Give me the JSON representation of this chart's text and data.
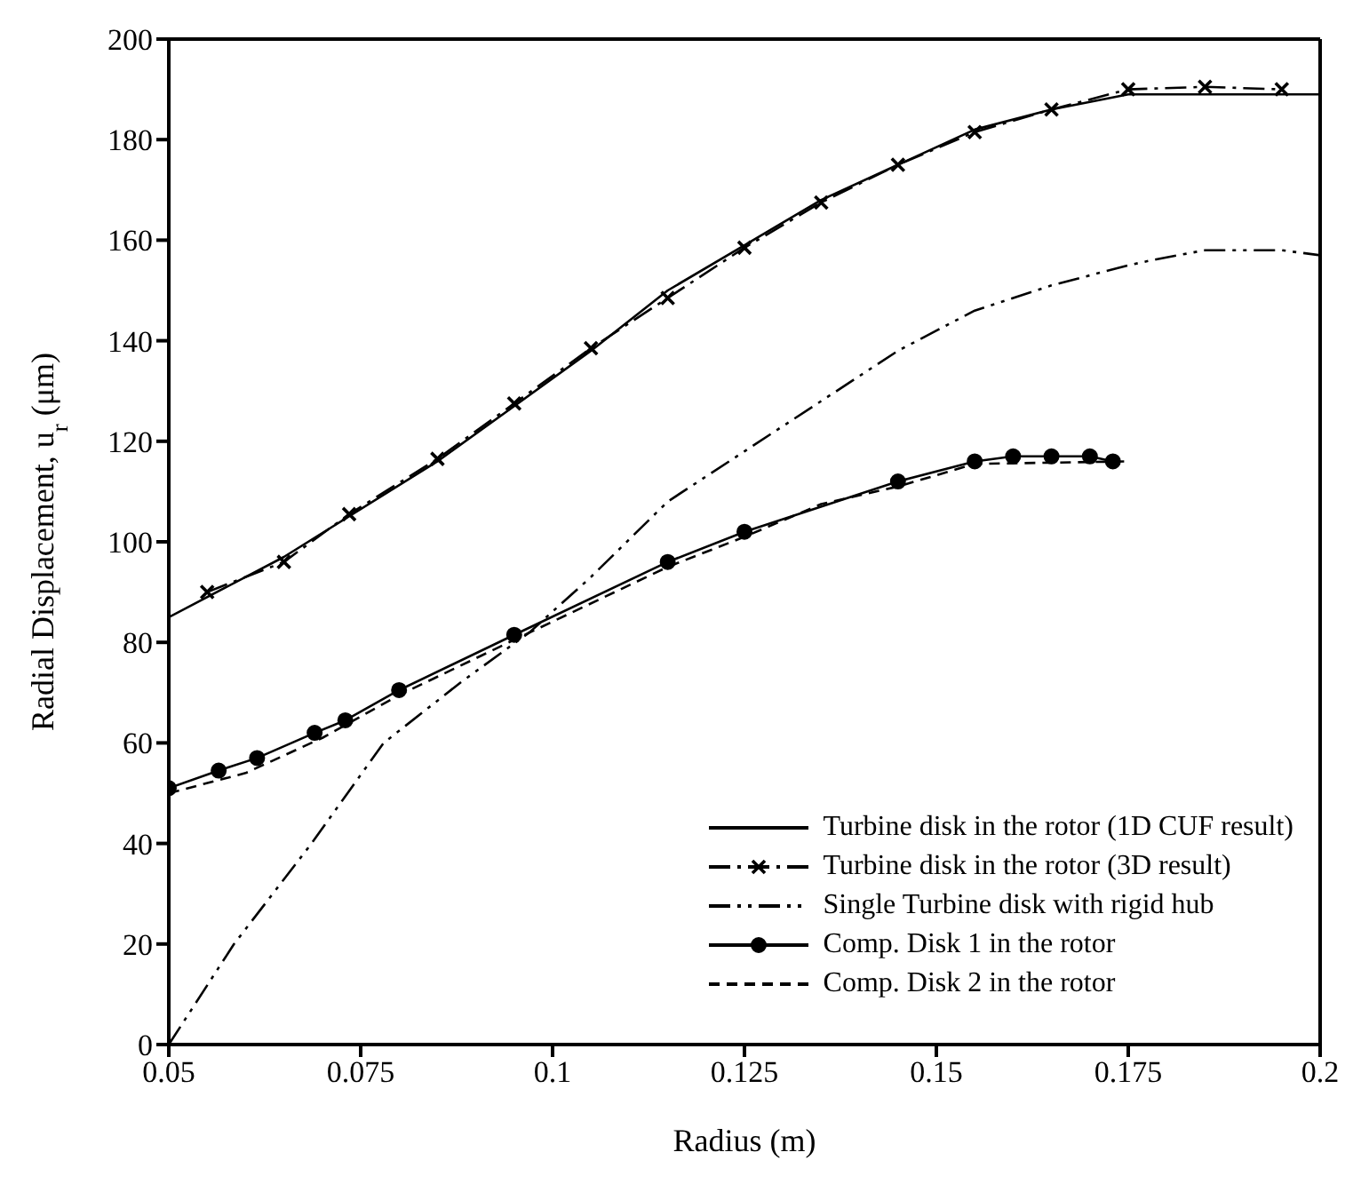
{
  "chart_data": {
    "type": "line",
    "xlabel": "Radius (m)",
    "ylabel": "Radial Displacement, u$_{r}$  (μm)",
    "xlim": [
      0.05,
      0.2
    ],
    "xticks": [
      0.05,
      0.075,
      0.1,
      0.125,
      0.15,
      0.175,
      0.2
    ],
    "ylim": [
      0,
      200
    ],
    "yticks": [
      0,
      20,
      40,
      60,
      80,
      100,
      120,
      140,
      160,
      180,
      200
    ],
    "grid": false,
    "legend": "bottom right",
    "marker": "none",
    "series": [
      {
        "name": "Turbine disk in the rotor  (1D CUF result)",
        "color": "#000000",
        "line_style": "solid",
        "x": [
          0.05,
          0.065,
          0.085,
          0.095,
          0.105,
          0.115,
          0.125,
          0.135,
          0.145,
          0.155,
          0.165,
          0.175,
          0.2
        ],
        "values": [
          85,
          97,
          116,
          127,
          138,
          150,
          159,
          168,
          175,
          182,
          186,
          189,
          189
        ]
      },
      {
        "name": "Turbine disk in the rotor (3D result)",
        "color": "#000000",
        "line_style": "dashdot",
        "marker": "cross",
        "x": [
          0.055,
          0.065,
          0.0735,
          0.085,
          0.095,
          0.105,
          0.115,
          0.125,
          0.135,
          0.145,
          0.155,
          0.165,
          0.175,
          0.185,
          0.195
        ],
        "values": [
          90,
          96,
          105.5,
          116.5,
          127.5,
          138.5,
          148.5,
          158.5,
          167.5,
          175,
          181.5,
          186,
          190,
          190.5,
          190
        ]
      },
      {
        "name": "Single Turbine disk with rigid hub",
        "color": "#000000",
        "line_style": "dashdotdot",
        "x": [
          0.05,
          0.0585,
          0.0686,
          0.078,
          0.088,
          0.097,
          0.105,
          0.115,
          0.125,
          0.135,
          0.145,
          0.155,
          0.165,
          0.175,
          0.178,
          0.185,
          0.195,
          0.2
        ],
        "values": [
          0,
          20,
          40,
          60,
          72,
          82,
          93,
          108,
          118,
          128,
          138,
          146,
          151,
          155,
          156,
          158,
          158,
          157
        ]
      },
      {
        "name": "Comp. Disk 1 in the rotor",
        "color": "#000000",
        "line_style": "solid",
        "marker": "circle",
        "x": [
          0.05,
          0.0565,
          0.0615,
          0.069,
          0.073,
          0.08,
          0.095,
          0.115,
          0.125,
          0.145,
          0.155,
          0.16,
          0.165,
          0.17,
          0.173
        ],
        "values": [
          51,
          54.5,
          57,
          62,
          64.5,
          70.5,
          81.5,
          96,
          102,
          112,
          116,
          117,
          117,
          117,
          116
        ]
      },
      {
        "name": "Comp. Disk 2 in the rotor",
        "color": "#000000",
        "line_style": "dashed",
        "x": [
          0.05,
          0.06,
          0.07,
          0.08,
          0.095,
          0.115,
          0.125,
          0.135,
          0.145,
          0.155,
          0.175
        ],
        "values": [
          50,
          54,
          61,
          69.5,
          80.5,
          95,
          101,
          107.5,
          111,
          115.5,
          116
        ]
      }
    ]
  }
}
